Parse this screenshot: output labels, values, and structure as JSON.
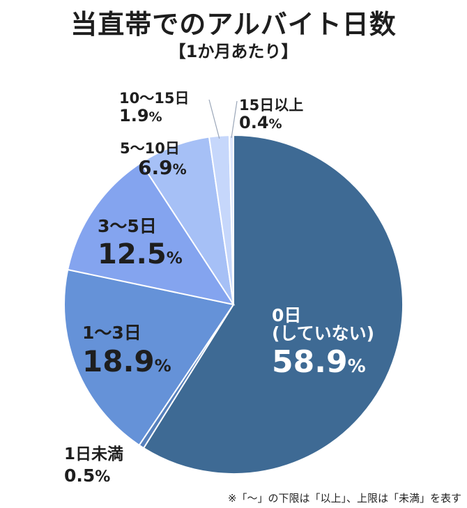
{
  "title": "当直帯でのアルバイト日数",
  "subtitle": "【1か月あたり】",
  "note": "※「〜」の下限は「以上」、上限は「未満」を表す",
  "chart_data": {
    "type": "pie",
    "title": "当直帯でのアルバイト日数",
    "subtitle": "【1か月あたり】",
    "start_angle_deg": 0,
    "direction": "clockwise",
    "slices": [
      {
        "label": "0日",
        "sublabel": "(していない)",
        "value": 58.9,
        "value_label": "58.9",
        "unit": "%",
        "color": "#3e6a94"
      },
      {
        "label": "1日未満",
        "value": 0.5,
        "value_label": "0.5",
        "unit": "%",
        "color": "#5680bc"
      },
      {
        "label": "1〜3日",
        "value": 18.9,
        "value_label": "18.9",
        "unit": "%",
        "color": "#6592d8"
      },
      {
        "label": "3〜5日",
        "value": 12.5,
        "value_label": "12.5",
        "unit": "%",
        "color": "#84a4ef"
      },
      {
        "label": "5〜10日",
        "value": 6.9,
        "value_label": "6.9",
        "unit": "%",
        "color": "#a6c0f6"
      },
      {
        "label": "10〜15日",
        "value": 1.9,
        "value_label": "1.9",
        "unit": "%",
        "color": "#c6d7fb"
      },
      {
        "label": "15日以上",
        "value": 0.4,
        "value_label": "0.4",
        "unit": "%",
        "color": "#dfe8fd"
      }
    ]
  }
}
